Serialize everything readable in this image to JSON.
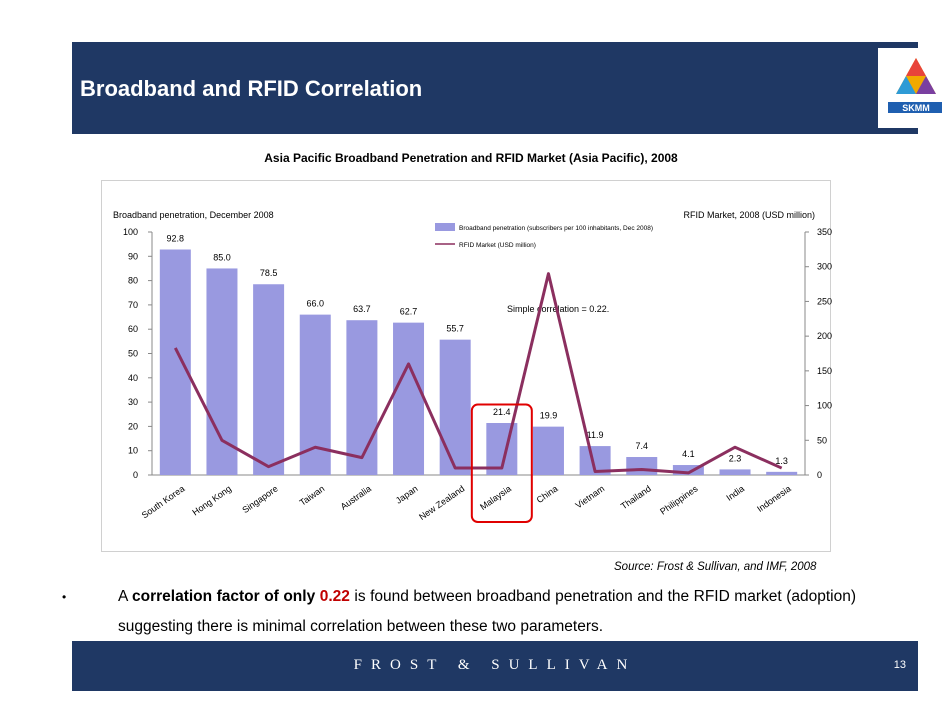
{
  "slide": {
    "title": "Broadband and RFID Correlation",
    "logo_text": "SKMM",
    "source": "Source: Frost & Sullivan, and IMF, 2008",
    "bullet_symbol": "•",
    "text_part1": "A ",
    "text_bold": "correlation factor of only ",
    "text_value": "0.22",
    "text_part2": " is found between broadband penetration and the RFID market (adoption) suggesting there is minimal correlation between these two parameters.",
    "footer_brand": "FROST & SULLIVAN",
    "page_number": "13"
  },
  "colors": {
    "title_bar": "#1f3864",
    "bar": "#9999e0",
    "line": "#8b2f5f",
    "highlight_box": "#e00000",
    "value_highlight": "#c00000"
  },
  "chart_data": {
    "type": "bar",
    "title": "Asia Pacific Broadband Penetration and RFID Market (Asia Pacific), 2008",
    "categories": [
      "South Korea",
      "Hong Kong",
      "Singapore",
      "Taiwan",
      "Australia",
      "Japan",
      "New Zealand",
      "Malaysia",
      "China",
      "Vietnam",
      "Thailand",
      "Philippines",
      "India",
      "Indonesia"
    ],
    "series": [
      {
        "name": "Broadband penetration (subscribers per 100 inhabitants, Dec 2008)",
        "type": "bar",
        "axis": "left",
        "values": [
          92.8,
          85.0,
          78.5,
          66.0,
          63.7,
          62.7,
          55.7,
          21.4,
          19.9,
          11.9,
          7.4,
          4.1,
          2.3,
          1.3
        ],
        "labels": [
          "92.8",
          "85.0",
          "78.5",
          "66.0",
          "63.7",
          "62.7",
          "55.7",
          "21.4",
          "19.9",
          "11.9",
          "7.4",
          "4.1",
          "2.3",
          "1.3"
        ]
      },
      {
        "name": "RFID Market (USD million)",
        "type": "line",
        "axis": "right",
        "values": [
          183,
          50,
          12,
          40,
          25,
          160,
          10,
          10,
          290,
          5,
          8,
          3,
          40,
          10
        ]
      }
    ],
    "ylabel_left": "Broadband penetration, December 2008",
    "ylabel_right": "RFID Market, 2008 (USD million)",
    "ylim_left": [
      0,
      100
    ],
    "ylim_right": [
      0,
      350
    ],
    "yticks_left": [
      0,
      10,
      20,
      30,
      40,
      50,
      60,
      70,
      80,
      90,
      100
    ],
    "yticks_right": [
      0,
      50,
      100,
      150,
      200,
      250,
      300,
      350
    ],
    "annotation": "Simple correlation = 0.22.",
    "highlighted_category": "Malaysia"
  }
}
